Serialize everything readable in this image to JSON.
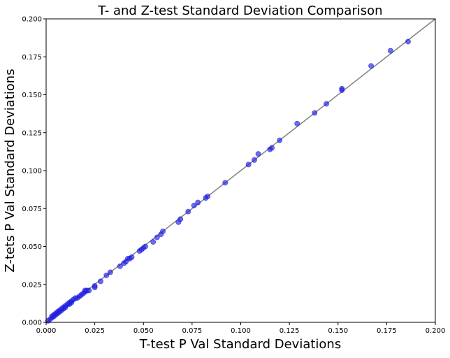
{
  "chart_data": {
    "type": "scatter",
    "title": "T- and Z-test Standard Deviation Comparison",
    "xlabel": "T-test P Val Standard Deviations",
    "ylabel": "Z-tets P Val Standard Deviations",
    "xlim": [
      0.0,
      0.2
    ],
    "ylim": [
      0.0,
      0.2
    ],
    "xticks": [
      "0.000",
      "0.025",
      "0.050",
      "0.075",
      "0.100",
      "0.125",
      "0.150",
      "0.175",
      "0.200"
    ],
    "yticks": [
      "0.000",
      "0.025",
      "0.050",
      "0.075",
      "0.100",
      "0.125",
      "0.150",
      "0.175",
      "0.200"
    ],
    "grid": false,
    "reference_line": {
      "from": [
        0.0,
        0.0
      ],
      "to": [
        0.2,
        0.2
      ],
      "color": "#808080"
    },
    "point_color": "#1f1fe0",
    "series": [
      {
        "x": [
          0.001,
          0.002,
          0.003,
          0.003,
          0.004,
          0.004,
          0.005,
          0.005,
          0.006,
          0.006,
          0.007,
          0.007,
          0.008,
          0.008,
          0.009,
          0.009,
          0.01,
          0.01,
          0.011,
          0.012,
          0.012,
          0.013,
          0.013,
          0.014,
          0.015,
          0.016,
          0.017,
          0.018,
          0.019,
          0.02,
          0.02,
          0.021,
          0.022,
          0.025,
          0.025,
          0.028,
          0.031,
          0.033,
          0.038,
          0.04,
          0.041,
          0.042,
          0.043,
          0.044,
          0.048,
          0.049,
          0.05,
          0.051,
          0.055,
          0.057,
          0.059,
          0.06,
          0.068,
          0.069,
          0.073,
          0.076,
          0.078,
          0.082,
          0.083,
          0.092,
          0.104,
          0.107,
          0.109,
          0.115,
          0.116,
          0.12,
          0.129,
          0.138,
          0.144,
          0.152,
          0.152,
          0.167,
          0.177,
          0.186
        ],
        "y": [
          0.001,
          0.002,
          0.003,
          0.004,
          0.004,
          0.005,
          0.005,
          0.006,
          0.006,
          0.007,
          0.007,
          0.008,
          0.008,
          0.009,
          0.009,
          0.01,
          0.01,
          0.011,
          0.012,
          0.012,
          0.013,
          0.013,
          0.014,
          0.015,
          0.016,
          0.016,
          0.017,
          0.018,
          0.019,
          0.02,
          0.021,
          0.021,
          0.021,
          0.023,
          0.024,
          0.027,
          0.031,
          0.033,
          0.037,
          0.039,
          0.04,
          0.042,
          0.042,
          0.043,
          0.047,
          0.048,
          0.049,
          0.05,
          0.053,
          0.056,
          0.058,
          0.06,
          0.066,
          0.068,
          0.073,
          0.077,
          0.079,
          0.082,
          0.083,
          0.092,
          0.104,
          0.107,
          0.111,
          0.114,
          0.115,
          0.12,
          0.131,
          0.138,
          0.144,
          0.153,
          0.154,
          0.169,
          0.179,
          0.185
        ]
      }
    ]
  }
}
